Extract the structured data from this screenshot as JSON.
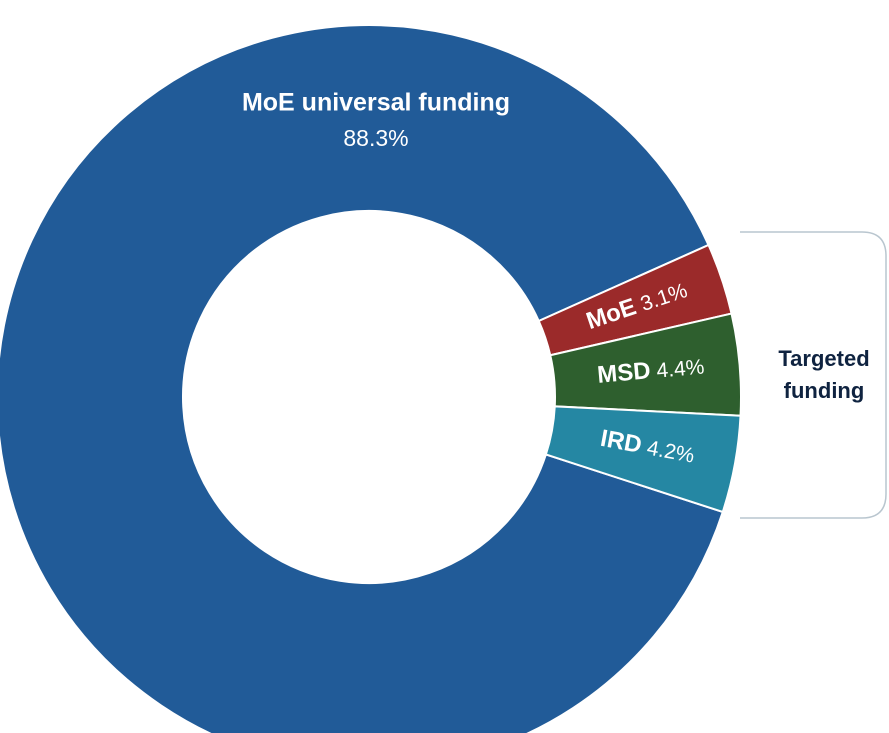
{
  "chart_data": {
    "type": "donut",
    "categories": [
      "MoE universal funding",
      "MoE",
      "MSD",
      "IRD"
    ],
    "values": [
      88.3,
      3.1,
      4.4,
      4.2
    ],
    "value_labels": [
      "88.3%",
      "3.1%",
      "4.4%",
      "4.2%"
    ],
    "colors": [
      "#215b98",
      "#9b2a2a",
      "#2e5f2e",
      "#2587a3"
    ],
    "annotation": "Targeted funding"
  }
}
